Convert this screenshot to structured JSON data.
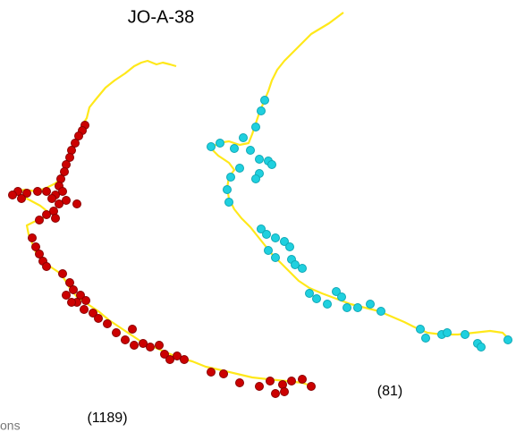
{
  "title": "JO-A-38",
  "panels": [
    {
      "count_label": "(1189)"
    },
    {
      "count_label": "(81)"
    }
  ],
  "footnote": "ons"
}
